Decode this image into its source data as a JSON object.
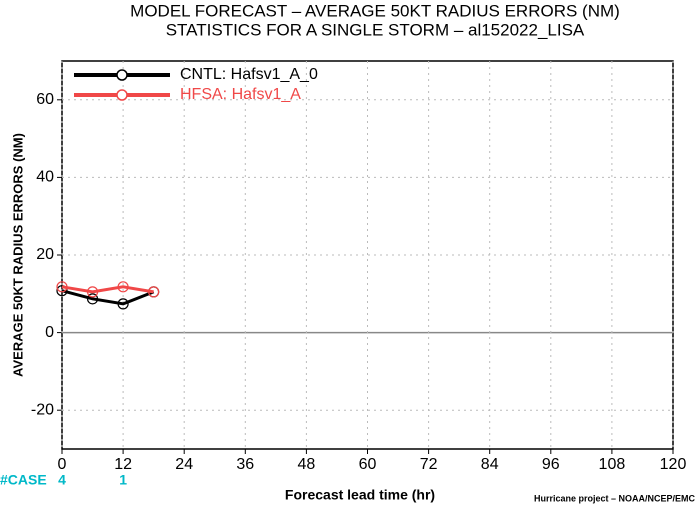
{
  "chart_data": {
    "type": "line",
    "title": "MODEL FORECAST – AVERAGE 50KT RADIUS ERRORS (NM)",
    "subtitle": "STATISTICS FOR A SINGLE STORM – al152022_LISA",
    "x_label": "Forecast lead time (hr)",
    "y_label": "AVERAGE 50KT RADIUS ERRORS (NM)",
    "footer": "Hurricane project – NOAA/NCEP/EMC",
    "x": [
      0,
      6,
      12,
      18
    ],
    "series": [
      {
        "name": "CNTL: Hafsv1_A_0",
        "color": "#000000",
        "values": [
          10.8,
          8.7,
          7.4,
          10.5
        ]
      },
      {
        "name": "HFSA: Hafsv1_A",
        "color": "#f04848",
        "values": [
          11.8,
          10.5,
          11.8,
          10.5
        ]
      }
    ],
    "xlim": [
      0,
      120
    ],
    "xticks": [
      0,
      12,
      24,
      36,
      48,
      60,
      72,
      84,
      96,
      108,
      120
    ],
    "ylim": [
      -30,
      70
    ],
    "yticks": [
      -20,
      0,
      20,
      40,
      60
    ],
    "grid": true,
    "legend": "upper left",
    "cases": {
      "label": "#CASE",
      "color": "#00b8c8",
      "x": [
        0,
        12
      ],
      "values": [
        4,
        1
      ]
    }
  }
}
